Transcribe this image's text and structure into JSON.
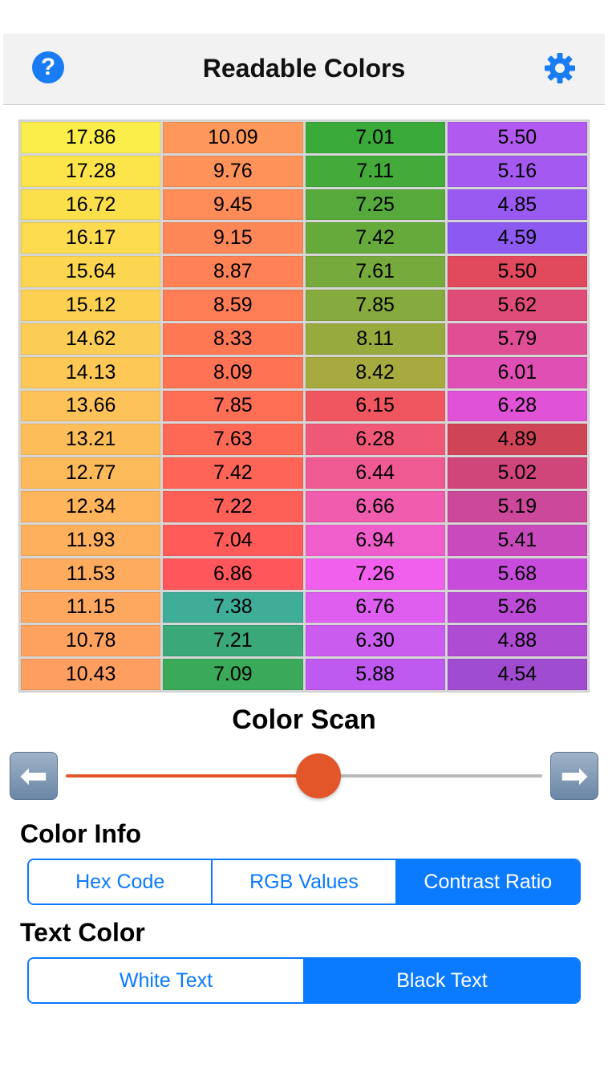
{
  "header": {
    "title": "Readable Colors",
    "help_glyph": "?",
    "help_icon": "question-circle-icon",
    "settings_icon": "gear-icon"
  },
  "grid": {
    "columns": [
      {
        "cells": [
          {
            "value": "17.86",
            "color": "#fbee4a"
          },
          {
            "value": "17.28",
            "color": "#fbe54b"
          },
          {
            "value": "16.72",
            "color": "#fbe04c"
          },
          {
            "value": "16.17",
            "color": "#fcdb4e"
          },
          {
            "value": "15.64",
            "color": "#fcd650"
          },
          {
            "value": "15.12",
            "color": "#fcd152"
          },
          {
            "value": "14.62",
            "color": "#fccd54"
          },
          {
            "value": "14.13",
            "color": "#fdc856"
          },
          {
            "value": "13.66",
            "color": "#fdc358"
          },
          {
            "value": "13.21",
            "color": "#fdbe5a"
          },
          {
            "value": "12.77",
            "color": "#fdba5b"
          },
          {
            "value": "12.34",
            "color": "#feb55c"
          },
          {
            "value": "11.93",
            "color": "#feb05d"
          },
          {
            "value": "11.53",
            "color": "#feab5e"
          },
          {
            "value": "11.15",
            "color": "#fea75f"
          },
          {
            "value": "10.78",
            "color": "#fea260"
          },
          {
            "value": "10.43",
            "color": "#fe9e60"
          }
        ]
      },
      {
        "cells": [
          {
            "value": "10.09",
            "color": "#fe985a"
          },
          {
            "value": "9.76",
            "color": "#fe9259"
          },
          {
            "value": "9.45",
            "color": "#fe8c58"
          },
          {
            "value": "9.15",
            "color": "#fe8757"
          },
          {
            "value": "8.87",
            "color": "#fe8256"
          },
          {
            "value": "8.59",
            "color": "#fe7d55"
          },
          {
            "value": "8.33",
            "color": "#fe7854"
          },
          {
            "value": "8.09",
            "color": "#fe7354"
          },
          {
            "value": "7.85",
            "color": "#fe6e55"
          },
          {
            "value": "7.63",
            "color": "#fe6956"
          },
          {
            "value": "7.42",
            "color": "#fe6557"
          },
          {
            "value": "7.22",
            "color": "#fe6058"
          },
          {
            "value": "7.04",
            "color": "#fe5b59"
          },
          {
            "value": "6.86",
            "color": "#fe565a"
          },
          {
            "value": "7.38",
            "color": "#3fad98"
          },
          {
            "value": "7.21",
            "color": "#3aa878"
          },
          {
            "value": "7.09",
            "color": "#3aaa5a"
          }
        ]
      },
      {
        "cells": [
          {
            "value": "7.01",
            "color": "#3aaa3a"
          },
          {
            "value": "7.11",
            "color": "#44aa3a"
          },
          {
            "value": "7.25",
            "color": "#55aa3b"
          },
          {
            "value": "7.42",
            "color": "#66aa3b"
          },
          {
            "value": "7.61",
            "color": "#76aa3c"
          },
          {
            "value": "7.85",
            "color": "#86aa3d"
          },
          {
            "value": "8.11",
            "color": "#96aa3e"
          },
          {
            "value": "8.42",
            "color": "#a6aa3f"
          },
          {
            "value": "6.15",
            "color": "#f05660"
          },
          {
            "value": "6.28",
            "color": "#f05878"
          },
          {
            "value": "6.44",
            "color": "#f05a92"
          },
          {
            "value": "6.66",
            "color": "#f05cae"
          },
          {
            "value": "6.94",
            "color": "#f05ecc"
          },
          {
            "value": "7.26",
            "color": "#f060ec"
          },
          {
            "value": "6.76",
            "color": "#de5ef0"
          },
          {
            "value": "6.30",
            "color": "#ca5cf0"
          },
          {
            "value": "5.88",
            "color": "#be5af0"
          }
        ]
      },
      {
        "cells": [
          {
            "value": "5.50",
            "color": "#b15af0"
          },
          {
            "value": "5.16",
            "color": "#a45af0"
          },
          {
            "value": "4.85",
            "color": "#985af0"
          },
          {
            "value": "4.59",
            "color": "#8c5af0"
          },
          {
            "value": "5.50",
            "color": "#e04a5c"
          },
          {
            "value": "5.62",
            "color": "#e04c78"
          },
          {
            "value": "5.79",
            "color": "#e04e94"
          },
          {
            "value": "6.01",
            "color": "#e050b4"
          },
          {
            "value": "6.28",
            "color": "#e052d6"
          },
          {
            "value": "4.89",
            "color": "#d04458"
          },
          {
            "value": "5.02",
            "color": "#d0467a"
          },
          {
            "value": "5.19",
            "color": "#cc489a"
          },
          {
            "value": "5.41",
            "color": "#c84abc"
          },
          {
            "value": "5.68",
            "color": "#c84cdc"
          },
          {
            "value": "5.26",
            "color": "#bc4cd8"
          },
          {
            "value": "4.88",
            "color": "#ae4cd4"
          },
          {
            "value": "4.54",
            "color": "#a04cd0"
          }
        ]
      }
    ]
  },
  "color_scan": {
    "title": "Color Scan",
    "slider_value": 0.53,
    "accent": "#e2562a",
    "left_arrow": "⬅",
    "right_arrow": "➡"
  },
  "color_info": {
    "label": "Color Info",
    "options": [
      "Hex Code",
      "RGB Values",
      "Contrast Ratio"
    ],
    "selected": "Contrast Ratio"
  },
  "text_color": {
    "label": "Text Color",
    "options": [
      "White Text",
      "Black Text"
    ],
    "selected": "Black Text"
  }
}
